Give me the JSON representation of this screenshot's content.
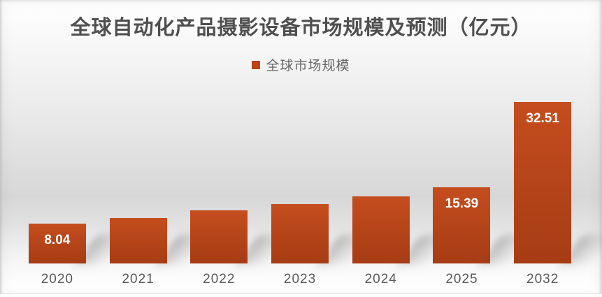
{
  "legend": {
    "label": "全球市场规模",
    "swatch_color": "#bc4317"
  },
  "chart_data": {
    "type": "bar",
    "title": "全球自动化产品摄影设备市场规模及预测（亿元）",
    "legend": [
      "全球市场规模"
    ],
    "legend_position": "top-center",
    "categories": [
      "2020",
      "2021",
      "2022",
      "2023",
      "2024",
      "2025",
      "2032"
    ],
    "series": [
      {
        "name": "全球市场规模",
        "values": [
          8.04,
          9.2,
          10.7,
          12.0,
          13.5,
          15.39,
          32.51
        ]
      }
    ],
    "data_labels": [
      "8.04",
      "",
      "",
      "",
      "",
      "15.39",
      "32.51"
    ],
    "values_estimated_from_pixels": [
      false,
      true,
      true,
      true,
      true,
      false,
      false
    ],
    "xlabel": "",
    "ylabel": "",
    "ylim": [
      0,
      33.4
    ],
    "grid": false,
    "y_axis_visible": false,
    "bar_color_top": "#c54d1e",
    "bar_color_bottom": "#a63c14",
    "data_label_color": "#ffffff",
    "axis_label_color": "#595959",
    "title_color": "#4f4f4f"
  }
}
